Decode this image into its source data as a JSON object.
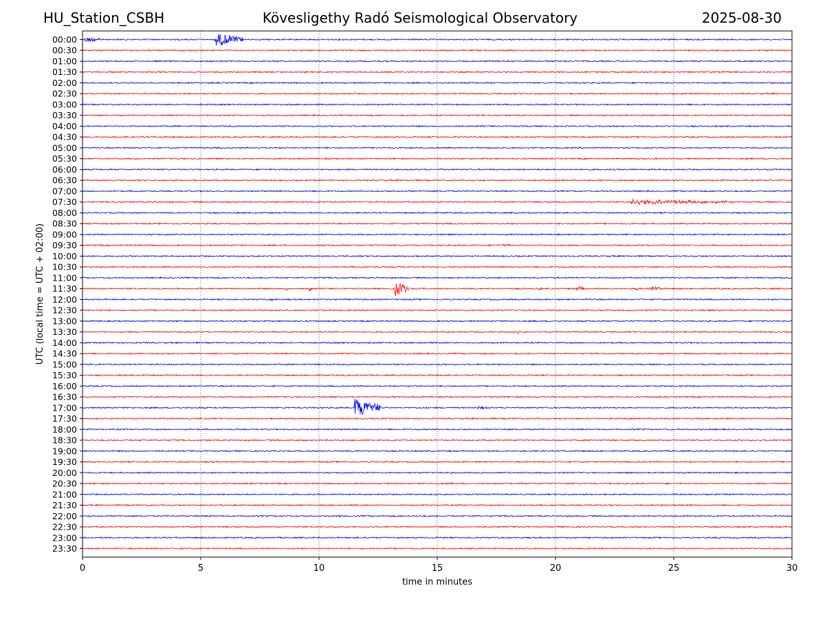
{
  "header": {
    "station": "HU_Station_CSBH",
    "observatory": "Kövesligethy Radó Seismological Observatory",
    "date": "2025-08-30"
  },
  "chart_data": {
    "type": "line",
    "title": "Kövesligethy Radó Seismological Observatory",
    "xlabel": "time in minutes",
    "ylabel": "UTC (local time = UTC + 02:00)",
    "xlim": [
      0,
      30
    ],
    "x_ticks": [
      0,
      5,
      10,
      15,
      20,
      25,
      30
    ],
    "vertical_grid": true,
    "trace_colors": [
      "#0000ff",
      "#ff0000"
    ],
    "rows": [
      "00:00",
      "00:30",
      "01:00",
      "01:30",
      "02:00",
      "02:30",
      "03:00",
      "03:30",
      "04:00",
      "04:30",
      "05:00",
      "05:30",
      "06:00",
      "06:30",
      "07:00",
      "07:30",
      "08:00",
      "08:30",
      "09:00",
      "09:30",
      "10:00",
      "10:30",
      "11:00",
      "11:30",
      "12:00",
      "12:30",
      "13:00",
      "13:30",
      "14:00",
      "14:30",
      "15:00",
      "15:30",
      "16:00",
      "16:30",
      "17:00",
      "17:30",
      "18:00",
      "18:30",
      "19:00",
      "19:30",
      "20:00",
      "20:30",
      "21:00",
      "21:30",
      "22:00",
      "22:30",
      "23:00",
      "23:30"
    ],
    "events": [
      {
        "row": "00:00",
        "start_min": 0.1,
        "end_min": 0.8,
        "amplitude": 0.25
      },
      {
        "row": "00:00",
        "start_min": 5.6,
        "end_min": 6.8,
        "amplitude": 0.6
      },
      {
        "row": "07:30",
        "start_min": 23.2,
        "end_min": 27.5,
        "amplitude": 0.22
      },
      {
        "row": "09:30",
        "start_min": 17.7,
        "end_min": 18.1,
        "amplitude": 0.12
      },
      {
        "row": "11:30",
        "start_min": 8.6,
        "end_min": 8.7,
        "amplitude": 0.18
      },
      {
        "row": "11:30",
        "start_min": 9.6,
        "end_min": 9.8,
        "amplitude": 0.18
      },
      {
        "row": "11:30",
        "start_min": 13.2,
        "end_min": 13.8,
        "amplitude": 0.65
      },
      {
        "row": "11:30",
        "start_min": 19.3,
        "end_min": 19.5,
        "amplitude": 0.15
      },
      {
        "row": "11:30",
        "start_min": 20.9,
        "end_min": 21.3,
        "amplitude": 0.2
      },
      {
        "row": "11:30",
        "start_min": 23.4,
        "end_min": 23.6,
        "amplitude": 0.18
      },
      {
        "row": "11:30",
        "start_min": 24.0,
        "end_min": 24.6,
        "amplitude": 0.15
      },
      {
        "row": "12:00",
        "start_min": 7.9,
        "end_min": 8.2,
        "amplitude": 0.1
      },
      {
        "row": "13:30",
        "start_min": 18.4,
        "end_min": 18.5,
        "amplitude": 0.15
      },
      {
        "row": "17:00",
        "start_min": 11.5,
        "end_min": 12.6,
        "amplitude": 0.85
      },
      {
        "row": "17:00",
        "start_min": 16.7,
        "end_min": 17.2,
        "amplitude": 0.12
      },
      {
        "row": "22:00",
        "start_min": 10.7,
        "end_min": 11.2,
        "amplitude": 0.1
      }
    ]
  }
}
